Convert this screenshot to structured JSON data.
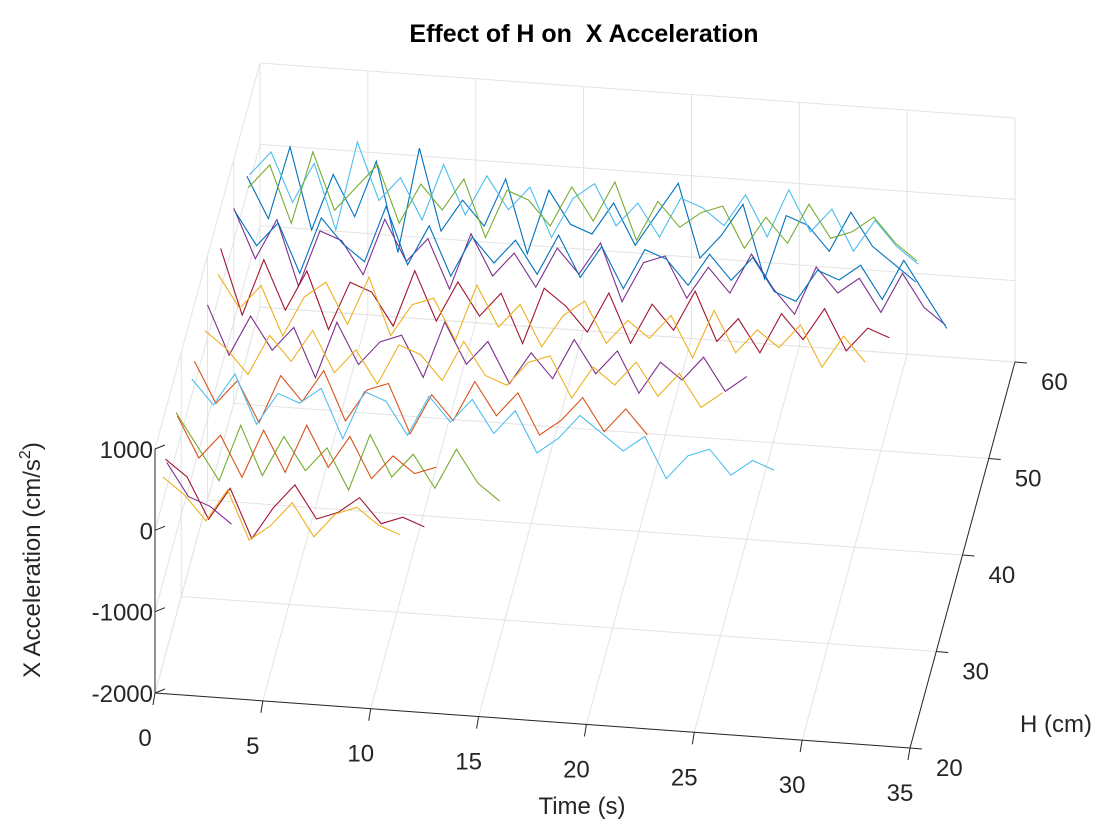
{
  "chart_data": {
    "type": "line3d",
    "title": "Effect of H on  X Acceleration",
    "xlabel": "Time (s)",
    "ylabel": "H (cm)",
    "zlabel": [
      "X Acceleration (cm/s",
      "2",
      ")"
    ],
    "xlim": [
      0,
      35
    ],
    "xticks": [
      0,
      5,
      10,
      15,
      20,
      25,
      30,
      35
    ],
    "ylim": [
      20,
      60
    ],
    "yticks": [
      20,
      30,
      40,
      50,
      60
    ],
    "zlim": [
      -2000,
      1000
    ],
    "zticks": [
      -2000,
      -1000,
      0,
      1000
    ],
    "grid": true,
    "series": [
      {
        "h": 55,
        "color": "#0072BD",
        "x": [
          0,
          1,
          2,
          3,
          4,
          5,
          6,
          7,
          8,
          9,
          10,
          11,
          12,
          13,
          14,
          15,
          16,
          17,
          18,
          19,
          20,
          21,
          22,
          23,
          24,
          25,
          26,
          27,
          28,
          29,
          30,
          31
        ],
        "values": [
          200,
          -300,
          600,
          -400,
          300,
          -200,
          500,
          -600,
          700,
          -300,
          100,
          -200,
          400,
          -500,
          300,
          -100,
          -200,
          200,
          -300,
          100,
          500,
          -400,
          -100,
          300,
          -600,
          200,
          100,
          -200,
          300,
          -100,
          -300,
          -500
        ]
      },
      {
        "h": 56,
        "color": "#4DBEEE",
        "x": [
          0,
          1,
          2,
          3,
          4,
          5,
          6,
          7,
          8,
          9,
          10,
          11,
          12,
          13,
          14,
          15,
          16,
          17,
          18,
          19,
          20,
          21,
          22,
          23,
          24,
          25,
          26,
          27,
          28,
          29,
          30,
          31
        ],
        "values": [
          100,
          400,
          -200,
          300,
          -500,
          600,
          -100,
          200,
          -300,
          400,
          -200,
          300,
          -100,
          200,
          -400,
          100,
          300,
          -200,
          100,
          -300,
          200,
          100,
          -100,
          300,
          -200,
          400,
          -100,
          200,
          -300,
          100,
          -200,
          -400
        ]
      },
      {
        "h": 55.5,
        "color": "#77AC30",
        "x": [
          0,
          1,
          2,
          3,
          4,
          5,
          6,
          7,
          8,
          9,
          10,
          11,
          12,
          13,
          14,
          15,
          16,
          17,
          18,
          19,
          20,
          21,
          22,
          23,
          24,
          25,
          26,
          27,
          28,
          29,
          30,
          31
        ],
        "values": [
          0,
          300,
          -400,
          500,
          -200,
          100,
          400,
          -300,
          200,
          -100,
          300,
          -400,
          200,
          100,
          -200,
          300,
          -100,
          400,
          -300,
          200,
          -100,
          100,
          200,
          -300,
          100,
          -200,
          300,
          -100,
          0,
          200,
          -100,
          -300
        ]
      },
      {
        "h": 50,
        "color": "#7E2F8E",
        "x": [
          0,
          1,
          2,
          3,
          4,
          5,
          6,
          7,
          8,
          9,
          10,
          11,
          12,
          13,
          14,
          15,
          16,
          17,
          18,
          19,
          20,
          21,
          22,
          23,
          24,
          25,
          26,
          27,
          28,
          29,
          30,
          31,
          32,
          33
        ],
        "values": [
          400,
          -200,
          300,
          -500,
          200,
          100,
          -300,
          400,
          -100,
          200,
          -400,
          300,
          -200,
          100,
          -300,
          200,
          -100,
          300,
          -400,
          100,
          200,
          -300,
          100,
          -200,
          300,
          -100,
          -400,
          200,
          -100,
          100,
          -300,
          200,
          -200,
          -400
        ]
      },
      {
        "h": 50.5,
        "color": "#0072BD",
        "x": [
          0,
          1,
          2,
          3,
          4,
          5,
          6,
          7,
          8,
          9,
          10,
          11,
          12,
          13,
          14,
          15,
          16,
          17,
          18,
          19,
          20,
          21,
          22,
          23,
          24,
          25,
          26,
          27,
          28,
          29,
          30,
          31,
          32,
          33
        ],
        "values": [
          300,
          -100,
          200,
          -400,
          300,
          0,
          -200,
          500,
          -200,
          300,
          -300,
          200,
          -100,
          200,
          -200,
          300,
          -200,
          200,
          -300,
          200,
          100,
          -200,
          200,
          -100,
          200,
          -200,
          -300,
          100,
          0,
          200,
          -200,
          300,
          -100,
          -500
        ]
      },
      {
        "h": 45,
        "color": "#A2142F",
        "x": [
          0,
          1,
          2,
          3,
          4,
          5,
          6,
          7,
          8,
          9,
          10,
          11,
          12,
          13,
          14,
          15,
          16,
          17,
          18,
          19,
          20,
          21,
          22,
          23,
          24,
          25,
          26,
          27,
          28,
          29,
          30,
          31
        ],
        "values": [
          500,
          -300,
          400,
          -200,
          300,
          -400,
          200,
          100,
          -300,
          400,
          -200,
          300,
          -100,
          200,
          -400,
          300,
          100,
          -200,
          300,
          -300,
          200,
          -100,
          400,
          -200,
          100,
          -300,
          200,
          -100,
          300,
          -200,
          100,
          0
        ]
      },
      {
        "h": 44,
        "color": "#EDB120",
        "x": [
          0,
          1,
          2,
          3,
          4,
          5,
          6,
          7,
          8,
          9,
          10,
          11,
          12,
          13,
          14,
          15,
          16,
          17,
          18,
          19,
          20,
          21,
          22,
          23,
          24,
          25,
          26,
          27,
          28,
          29,
          30
        ],
        "values": [
          300,
          -100,
          200,
          -400,
          100,
          300,
          -200,
          400,
          -300,
          100,
          200,
          -300,
          400,
          -100,
          200,
          -300,
          100,
          300,
          -200,
          100,
          -100,
          200,
          -300,
          300,
          -200,
          100,
          -100,
          200,
          -300,
          100,
          -200
        ]
      },
      {
        "h": 40,
        "color": "#7E2F8E",
        "x": [
          0,
          1,
          2,
          3,
          4,
          5,
          6,
          7,
          8,
          9,
          10,
          11,
          12,
          13,
          14,
          15,
          16,
          17,
          18,
          19,
          20,
          21,
          22,
          23,
          24,
          25
        ],
        "values": [
          400,
          -200,
          300,
          -100,
          200,
          -400,
          300,
          -200,
          100,
          200,
          -300,
          400,
          -100,
          200,
          -300,
          100,
          -200,
          300,
          -100,
          200,
          -300,
          100,
          -100,
          200,
          -200,
          0
        ]
      },
      {
        "h": 39,
        "color": "#EDB120",
        "x": [
          0,
          1,
          2,
          3,
          4,
          5,
          6,
          7,
          8,
          9,
          10,
          11,
          12,
          13,
          14,
          15,
          16,
          17,
          18,
          19,
          20,
          21,
          22,
          23,
          24
        ],
        "values": [
          200,
          0,
          -300,
          200,
          -100,
          300,
          -200,
          100,
          -300,
          200,
          100,
          -200,
          300,
          -100,
          -200,
          100,
          200,
          -300,
          100,
          -100,
          200,
          -200,
          100,
          -300,
          -100
        ]
      },
      {
        "h": 35,
        "color": "#D95319",
        "x": [
          0,
          1,
          2,
          3,
          4,
          5,
          6,
          7,
          8,
          9,
          10,
          11,
          12,
          13,
          14,
          15,
          16,
          17,
          18,
          19,
          20,
          21
        ],
        "values": [
          300,
          -200,
          100,
          -400,
          200,
          -100,
          300,
          -300,
          100,
          200,
          -400,
          100,
          -200,
          300,
          -100,
          200,
          -300,
          -100,
          200,
          -200,
          100,
          -200
        ]
      },
      {
        "h": 34,
        "color": "#4DBEEE",
        "x": [
          0,
          1,
          2,
          3,
          4,
          5,
          6,
          7,
          8,
          9,
          10,
          11,
          12,
          13,
          14,
          15,
          16,
          17,
          18,
          19,
          20,
          21,
          22,
          23,
          24,
          25,
          26,
          27
        ],
        "values": [
          200,
          -100,
          300,
          -300,
          100,
          0,
          200,
          -400,
          200,
          100,
          -300,
          200,
          -100,
          200,
          -200,
          100,
          -400,
          -200,
          100,
          -100,
          -300,
          -100,
          -600,
          -300,
          -200,
          -500,
          -300,
          -400
        ]
      },
      {
        "h": 28,
        "color": "#77AC30",
        "x": [
          0,
          1,
          2,
          3,
          4,
          5,
          6,
          7,
          8,
          9,
          10,
          11,
          12,
          13,
          14,
          15
        ],
        "values": [
          500,
          100,
          -300,
          400,
          -200,
          300,
          -100,
          200,
          -300,
          400,
          -100,
          200,
          -200,
          300,
          -100,
          -300
        ]
      },
      {
        "h": 28.5,
        "color": "#D95319",
        "x": [
          0,
          1,
          2,
          3,
          4,
          5,
          6,
          7,
          8,
          9,
          10,
          11,
          12
        ],
        "values": [
          400,
          -100,
          200,
          -300,
          300,
          -200,
          400,
          -100,
          300,
          -200,
          100,
          -100,
          0
        ]
      },
      {
        "h": 24,
        "color": "#A2142F",
        "x": [
          0,
          1,
          2,
          3,
          4,
          5,
          6,
          7,
          8,
          9,
          10,
          11,
          12
        ],
        "values": [
          400,
          200,
          -300,
          100,
          -500,
          -100,
          200,
          -200,
          -100,
          100,
          -200,
          -100,
          -200
        ]
      },
      {
        "h": 23,
        "color": "#EDB120",
        "x": [
          0,
          1,
          2,
          3,
          4,
          5,
          6,
          7,
          8,
          9,
          10,
          11
        ],
        "values": [
          300,
          100,
          -200,
          200,
          -400,
          -200,
          100,
          -300,
          0,
          100,
          -100,
          -200
        ]
      },
      {
        "h": 24.5,
        "color": "#7E2F8E",
        "x": [
          0,
          1,
          2,
          3
        ],
        "values": [
          300,
          -100,
          -200,
          -400
        ]
      }
    ]
  }
}
